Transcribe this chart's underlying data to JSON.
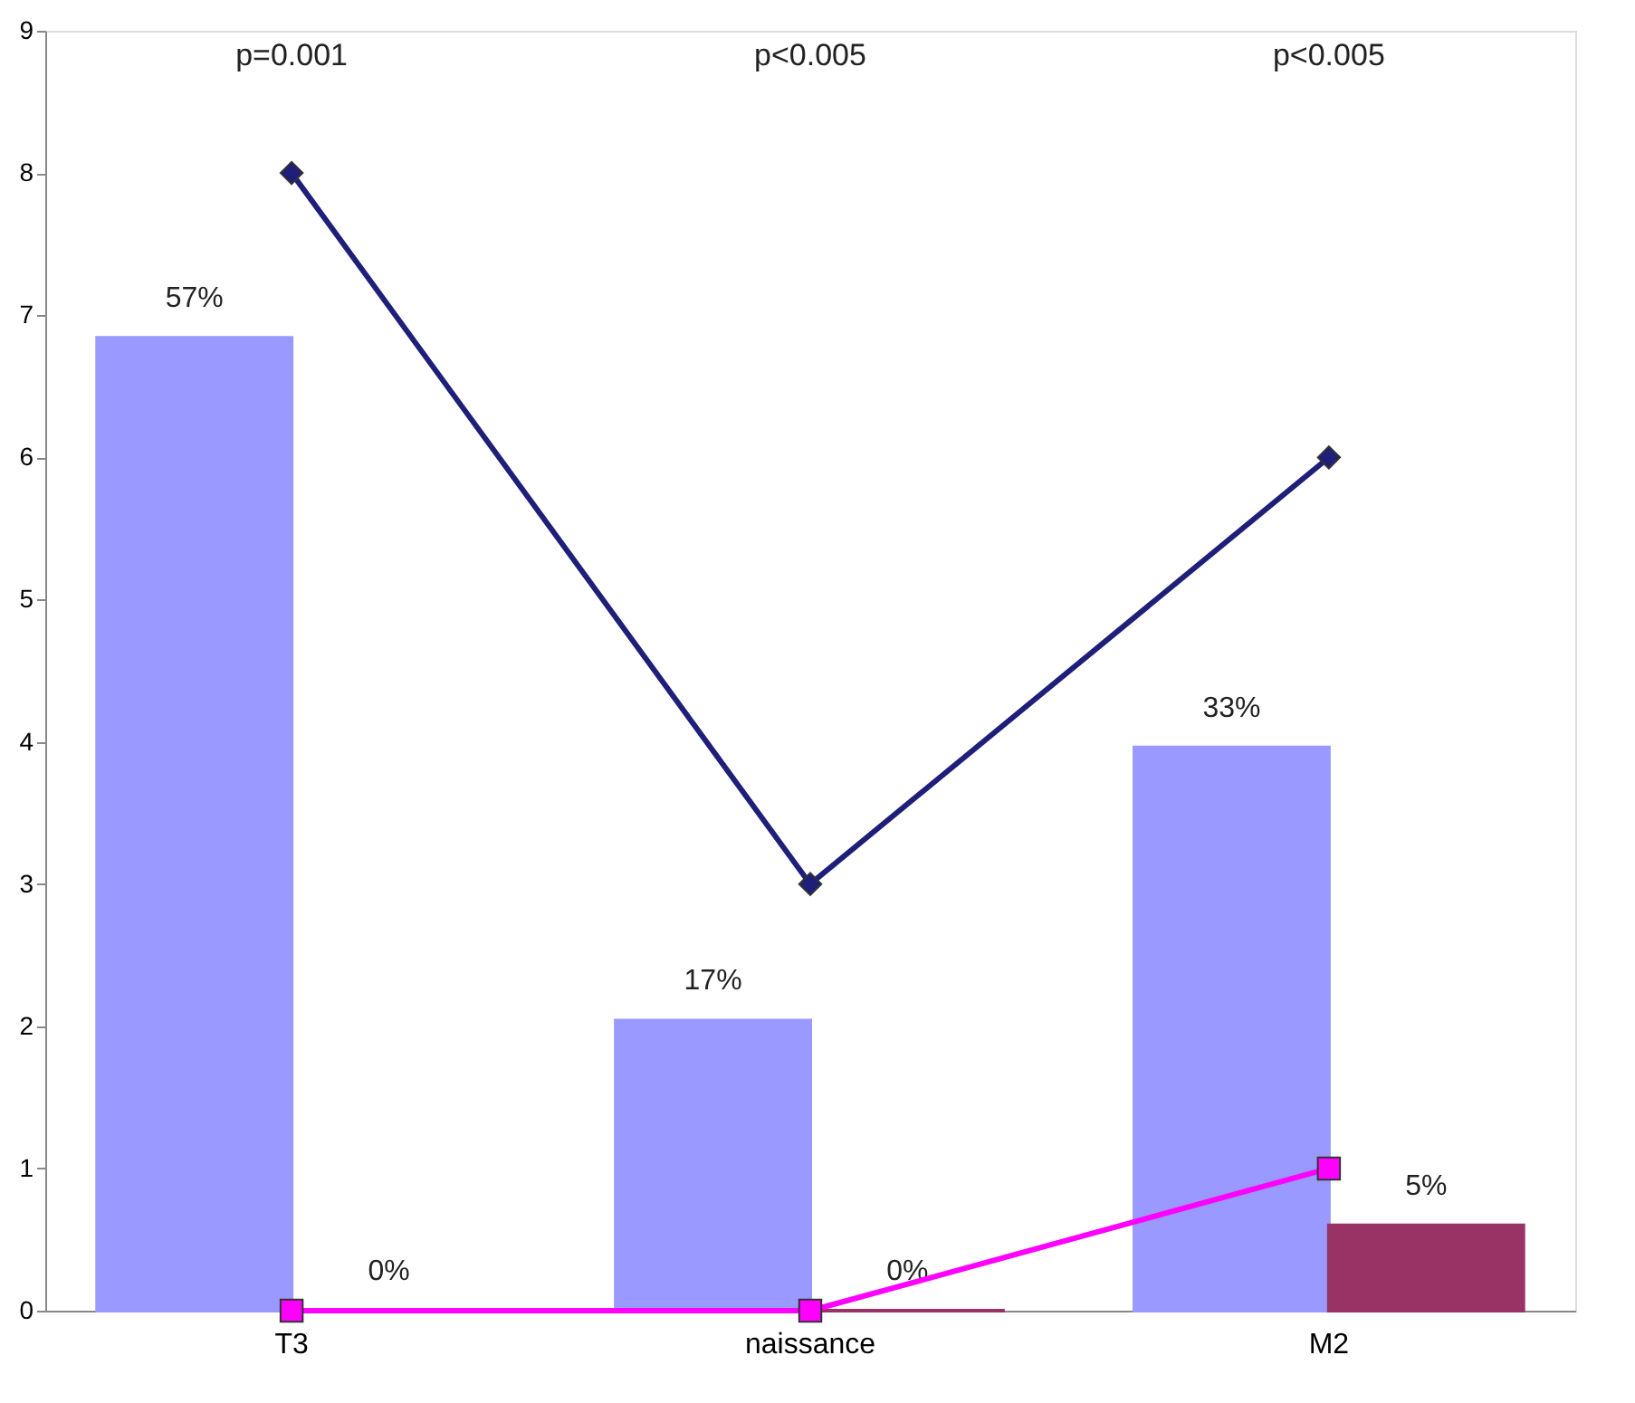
{
  "chart_data": {
    "type": "bar",
    "categories": [
      "T3",
      "naissance",
      "M2"
    ],
    "series": [
      {
        "color": "#9999ff",
        "values": [
          57,
          17,
          33
        ],
        "axis": "y2",
        "value_labels": [
          "57%",
          "17%",
          "33%"
        ]
      },
      {
        "color": "#993366",
        "values": [
          0,
          0,
          5
        ],
        "axis": "y2",
        "value_labels": [
          "0%",
          "0%",
          "5%"
        ]
      },
      {
        "type": "line",
        "color": "#1f1f7a",
        "values": [
          8,
          3,
          6
        ],
        "marker": "diamond"
      },
      {
        "type": "line",
        "color": "#ff00ff",
        "values": [
          0,
          0,
          1
        ],
        "marker": "square"
      }
    ],
    "ylim": [
      0,
      9
    ],
    "yticks": [
      0,
      1,
      2,
      3,
      4,
      5,
      6,
      7,
      8,
      9
    ],
    "y2lim": [
      0,
      75
    ],
    "annotations": [
      "p=0.001",
      "p<0.005",
      "p<0.005"
    ]
  }
}
